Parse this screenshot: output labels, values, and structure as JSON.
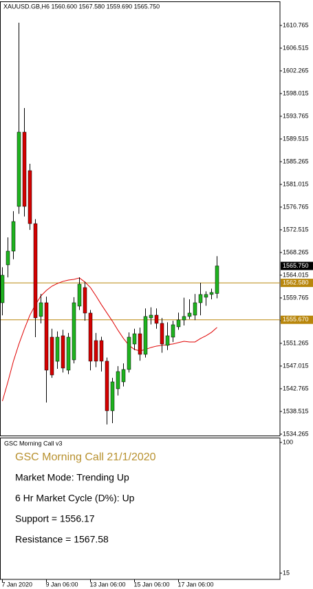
{
  "chart_data": [
    {
      "type": "candlestick",
      "title": "XAUUSD.GB,H6  1560.600 1567.580 1559.690 1565.750",
      "categories": [
        "7 Jan 2020",
        null,
        null,
        null,
        null,
        null,
        null,
        null,
        "9 Jan 06:00",
        null,
        null,
        null,
        null,
        null,
        null,
        null,
        "13 Jan 06:00",
        null,
        null,
        null,
        null,
        null,
        null,
        null,
        "15 Jan 06:00",
        null,
        null,
        null,
        null,
        null,
        null,
        null,
        "17 Jan 06:00",
        null,
        null,
        null,
        null,
        null,
        null,
        null
      ],
      "open": [
        1558.86,
        1565.95,
        1568.52,
        1576.89,
        1590.8,
        1583.59,
        1573.67,
        1556.3,
        1558.86,
        1552.42,
        1547.9,
        1552.68,
        1546.24,
        1548.17,
        1558.22,
        1561.7,
        1556.93,
        1551.78,
        1551.78,
        1547.92,
        1538.64,
        1542.76,
        1544.05,
        1546.37,
        1551.13,
        1553.06,
        1549.2,
        1556.03,
        1556.54,
        1555.0,
        1550.88,
        1552.42,
        1554.35,
        1555.64,
        1556.29,
        1556.54,
        1558.86,
        1559.89,
        1560.41,
        1560.6
      ],
      "high": [
        1565.5,
        1571.1,
        1576.0,
        1611.28,
        1595.31,
        1584.88,
        1574.5,
        1560.5,
        1560.0,
        1554.0,
        1553.5,
        1553.8,
        1553.2,
        1559.9,
        1563.63,
        1562.8,
        1557.5,
        1553.2,
        1552.5,
        1548.6,
        1544.8,
        1547.0,
        1547.5,
        1553.3,
        1554.0,
        1554.2,
        1557.8,
        1558.0,
        1557.8,
        1556.0,
        1555.2,
        1555.5,
        1557.0,
        1559.8,
        1559.5,
        1560.5,
        1562.6,
        1561.0,
        1561.5,
        1567.58
      ],
      "low": [
        1556.5,
        1563.6,
        1567.0,
        1575.5,
        1575.0,
        1572.5,
        1552.42,
        1555.0,
        1540.19,
        1544.8,
        1546.5,
        1545.8,
        1545.5,
        1547.5,
        1557.5,
        1555.5,
        1546.2,
        1546.8,
        1546.0,
        1536.07,
        1536.32,
        1541.5,
        1543.2,
        1545.8,
        1550.0,
        1548.0,
        1548.6,
        1554.8,
        1554.0,
        1549.5,
        1550.0,
        1551.5,
        1553.8,
        1554.6,
        1555.8,
        1555.6,
        1556.5,
        1558.3,
        1559.5,
        1559.69
      ],
      "close": [
        1564.01,
        1568.52,
        1574.06,
        1590.8,
        1576.89,
        1573.67,
        1556.03,
        1558.86,
        1546.24,
        1545.34,
        1552.42,
        1546.63,
        1552.42,
        1558.86,
        1562.34,
        1556.93,
        1547.92,
        1547.92,
        1547.92,
        1538.64,
        1544.05,
        1545.98,
        1546.37,
        1552.42,
        1553.06,
        1549.2,
        1556.29,
        1556.54,
        1555.0,
        1551.13,
        1552.68,
        1554.74,
        1555.64,
        1556.29,
        1556.93,
        1558.86,
        1560.41,
        1560.41,
        1560.79,
        1565.75
      ],
      "up_color": "#1fb31f",
      "down_color": "#d40000",
      "ma": {
        "color": "#e00000",
        "values": [
          1540.45,
          1544.05,
          1547.92,
          1551.14,
          1553.97,
          1556.55,
          1558.48,
          1560.15,
          1561.18,
          1561.96,
          1562.47,
          1562.86,
          1563.11,
          1563.24,
          1563.5,
          1562.73,
          1561.7,
          1560.15,
          1558.48,
          1556.93,
          1555.39,
          1553.71,
          1552.17,
          1550.88,
          1550.11,
          1549.85,
          1550.11,
          1550.49,
          1550.75,
          1550.88,
          1551.01,
          1551.14,
          1551.4,
          1551.65,
          1551.52,
          1551.52,
          1552.17,
          1552.69,
          1553.33,
          1554.23
        ]
      },
      "levels": [
        {
          "value": 1562.58,
          "label": "1562.580",
          "color": "#b8860b"
        },
        {
          "value": 1555.67,
          "label": "1555.670",
          "color": "#b8860b"
        }
      ],
      "last_price": {
        "value": 1565.75,
        "label": "1565.750",
        "color": "#000000"
      },
      "ylim": [
        1534.0,
        1615.14
      ],
      "yticks": [
        1610.765,
        1606.515,
        1602.265,
        1598.015,
        1593.765,
        1589.515,
        1585.265,
        1581.015,
        1576.765,
        1572.515,
        1568.265,
        1564.015,
        1559.765,
        1555.515,
        1551.265,
        1547.015,
        1542.765,
        1538.515,
        1534.265
      ]
    },
    {
      "type": "text-panel",
      "title": "GSC Morning Call v3",
      "ylim": [
        15,
        100
      ],
      "yticks": [
        100,
        15
      ],
      "heading": "GSC Morning Call 21/1/2020",
      "heading_color": "#b8912f",
      "lines": [
        "Market Mode: Trending Up",
        "6 Hr Market Cycle (D%): Up",
        "Support = 1556.17",
        "Resistance = 1567.58"
      ]
    }
  ]
}
